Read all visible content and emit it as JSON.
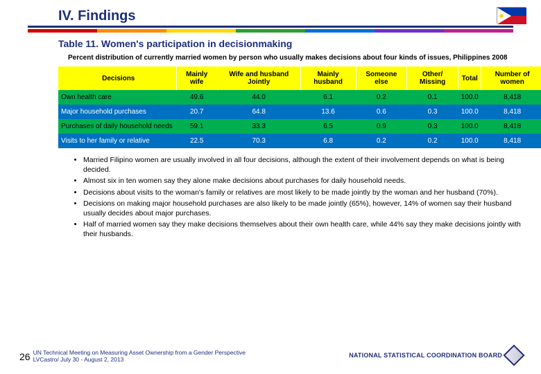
{
  "section_heading": "IV. Findings",
  "table_title": "Table 11. Women's participation in decisionmaking",
  "table_description": "Percent distribution of currently married women by person who usually makes decisions about four kinds of issues, Philippines 2008",
  "color_bar": [
    "#d40000",
    "#ff8c00",
    "#ffd800",
    "#2e9e2e",
    "#0070d8",
    "#7030c8",
    "#c02090"
  ],
  "table": {
    "columns": [
      "Decisions",
      "Mainly wife",
      "Wife and husband Jointly",
      "Mainly husband",
      "Someone else",
      "Other/ Missing",
      "Total",
      "Number of women"
    ],
    "rows": [
      [
        "Own health care",
        "49.6",
        "44.0",
        "6.1",
        "0.2",
        "0.1",
        "100.0",
        "8,418"
      ],
      [
        "Major household purchases",
        "20.7",
        "64.8",
        "13.6",
        "0.6",
        "0.3",
        "100.0",
        "8,418"
      ],
      [
        "Purchases of daily household needs",
        "59.1",
        "33.3",
        "6.5",
        "0.9",
        "0.3",
        "100.0",
        "8,418"
      ],
      [
        "Visits to her family or relative",
        "22.5",
        "70.3",
        "6.8",
        "0.2",
        "0.2",
        "100.0",
        "8,418"
      ]
    ],
    "header_bg": "#ffff00",
    "row_colors": [
      "#00b050",
      "#0070c0",
      "#00b050",
      "#0070c0"
    ],
    "row_text_colors": [
      "#000000",
      "#ffffff",
      "#000000",
      "#ffffff"
    ]
  },
  "bullets": [
    "Married Filipino women are usually involved in all four decisions, although the extent of their involvement depends on what is being decided.",
    "Almost six in ten women say they alone make decisions about purchases for daily household needs.",
    "Decisions about visits to the woman's family or relatives are most likely to be made jointly by the woman and her husband (70%).",
    "Decisions on making major household purchases are also likely to be made jointly (65%), however, 14% of women say their husband usually decides about major purchases.",
    "Half of married women say they make decisions themselves about their own health care, while 44% say they make decisions jointly with their husbands."
  ],
  "footer": {
    "page_number": "26",
    "meeting_line1": "UN Technical Meeting on Measuring Asset Ownership from a Gender Perspective",
    "meeting_line2": "LVCastro/ July 30 - August 2, 2013",
    "org": "NATIONAL STATISTICAL COORDINATION BOARD"
  }
}
